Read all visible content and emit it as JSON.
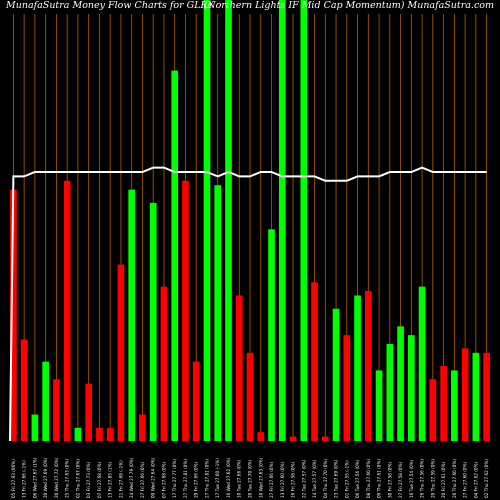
{
  "chart_data": {
    "type": "bar",
    "title": "MunafaSutra  Money Flow  Charts for GLRY",
    "subtitle": "(Northern  Lights IF Mid Cap Momentum) MunafaSutra.com",
    "colors": {
      "up": "#00ff00",
      "down": "#ff0000",
      "line": "#ffffff",
      "grid": "#b06000",
      "background": "#000000"
    },
    "ylim": [
      0,
      100
    ],
    "categories": [
      "05 Fri 27.93 (06%)",
      "13 Fri 27.66 (-1%)",
      "06 Wed 27.67 (1%)",
      "20 Wed 27.69 (0%)",
      "20 Wed 27.72 (0%)",
      "25 Thu 27.63 (0%)",
      "02 Thu 27.67 (0%)",
      "03 Fri 27.73 (0%)",
      "07 Fri 27.68 (0%)",
      "13 Fri 27.85 (1%)",
      "21 Fri 27.68 (-1%)",
      "24 Wed 27.79 (0%)",
      "27 Fri 27.66 (0%)",
      "09 Wed 27.64 (0%)",
      "07 Fri 27.68 (0%)",
      "17 Thu 27.77 (0%)",
      "27 Thu 27.81 (0%)",
      "29 Fri 27.66 (0%)",
      "27 Thu 27.81 (0%)",
      "17 Tue 27.60 (-1%)",
      "16 Wed 27.62 (0%)",
      "10 Tue 27.66 (0%)",
      "20 Tue 27.70 (0%)",
      "10 Wed 27.63 (0%)",
      "27 Fri 27.66 (0%)",
      "13 Fri 27.60 (0%)",
      "16 Fri 27.58 (0%)",
      "22 Tue 27.57 (0%)",
      "14 Tue 27.57 (0%)",
      "04 Thu 27.70 (0%)",
      "23 Tue 27.69 (0%)",
      "01 Fri 27.55 (-1%)",
      "06 Tue 27.56 (0%)",
      "08 Thu 27.60 (0%)",
      "09 Thu 27.61 (0%)",
      "30 Fri 27.58 (0%)",
      "27 Fri 27.58 (0%)",
      "16 Tue 27.54 (0%)",
      "26 Thu 27.56 (0%)",
      "29 Thu 27.59 (0%)",
      "20 Fri 27.61 (0%)",
      "26 Thu 27.60 (0%)",
      "27 Fri 27.60 (0%)",
      "04 Fri 27.62 (0%)",
      "02 Thu 27.62 (0%)"
    ],
    "series": [
      {
        "values": [
          57,
          23,
          6,
          18,
          14,
          59,
          3,
          13,
          3,
          3,
          40,
          57,
          6,
          54,
          35,
          84,
          59,
          18,
          100,
          58,
          100,
          33,
          20,
          2,
          48,
          100,
          1,
          100,
          36,
          1,
          30,
          24,
          33,
          34,
          16,
          22,
          26,
          24,
          35,
          14,
          17,
          16,
          21,
          20,
          20
        ],
        "colors": [
          "down",
          "down",
          "up",
          "up",
          "down",
          "down",
          "up",
          "down",
          "down",
          "down",
          "down",
          "up",
          "down",
          "up",
          "down",
          "up",
          "down",
          "down",
          "up",
          "up",
          "up",
          "down",
          "down",
          "down",
          "up",
          "up",
          "down",
          "up",
          "down",
          "down",
          "up",
          "down",
          "up",
          "down",
          "up",
          "up",
          "up",
          "up",
          "up",
          "down",
          "down",
          "up",
          "down",
          "up",
          "down"
        ]
      },
      {
        "type": "line",
        "values": [
          60,
          60,
          61,
          61,
          61,
          61,
          61,
          61,
          61,
          61,
          61,
          61,
          61,
          62,
          62,
          61,
          61,
          61,
          61,
          60,
          61,
          60,
          60,
          61,
          61,
          60,
          60,
          60,
          60,
          59,
          59,
          59,
          60,
          60,
          60,
          61,
          61,
          61,
          62,
          61,
          61,
          61,
          61,
          61,
          61
        ]
      }
    ]
  }
}
